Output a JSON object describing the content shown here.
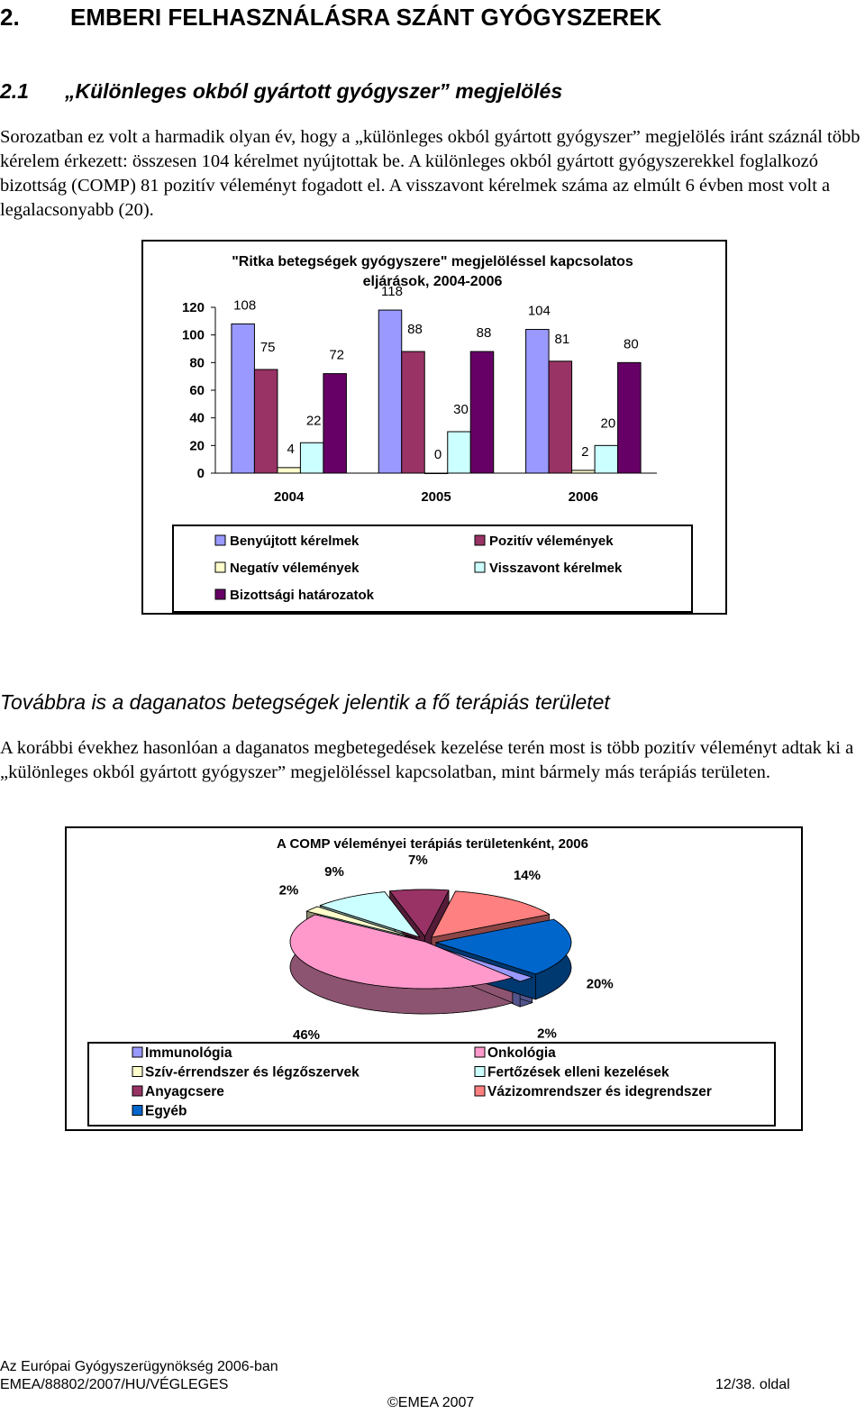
{
  "heading_1": {
    "number": "2.",
    "title": "EMBERI FELHASZNÁLÁSRA SZÁNT GYÓGYSZEREK"
  },
  "heading_2": {
    "number": "2.1",
    "title": "„Különleges okból gyártott gyógyszer” megjelölés"
  },
  "paragraph_1": "Sorozatban ez volt a harmadik olyan év, hogy a „különleges okból gyártott gyógyszer” megjelölés iránt száznál több kérelem érkezett: összesen 104 kérelmet nyújtottak be. A különleges okból gyártott gyógyszerekkel foglalkozó bizottság (COMP) 81 pozitív véleményt fogadott el. A visszavont kérelmek száma az elmúlt 6 évben most volt a legalacsonyabb (20).",
  "heading_3": "Továbbra is a daganatos betegségek jelentik a fő terápiás területet",
  "paragraph_2": "A korábbi évekhez hasonlóan a daganatos megbetegedések kezelése terén most is több pozitív véleményt adtak ki a „különleges okból gyártott gyógyszer” megjelöléssel kapcsolatban, mint bármely más terápiás területen.",
  "chart_data": [
    {
      "type": "bar",
      "title": [
        "\"Ritka betegségek gyógyszere\" megjelöléssel kapcsolatos",
        "eljárások, 2004-2006"
      ],
      "categories": [
        "2004",
        "2005",
        "2006"
      ],
      "series": [
        {
          "name": "Benyújtott kérelmek",
          "color": "#9999ff",
          "values": [
            108,
            118,
            104
          ]
        },
        {
          "name": "Pozitív vélemények",
          "color": "#993366",
          "values": [
            75,
            88,
            81
          ]
        },
        {
          "name": "Negatív vélemények",
          "color": "#ffffcc",
          "values": [
            4,
            0,
            2
          ]
        },
        {
          "name": "Visszavont kérelmek",
          "color": "#ccffff",
          "values": [
            22,
            30,
            20
          ]
        },
        {
          "name": "Bizottsági határozatok",
          "color": "#660066",
          "values": [
            72,
            88,
            80
          ]
        }
      ],
      "ylim": [
        0,
        120
      ],
      "yticks": [
        0,
        20,
        40,
        60,
        80,
        100,
        120
      ],
      "grid": false,
      "legend": "bottom"
    },
    {
      "type": "pie",
      "title": "A COMP véleményei terápiás területenként, 2006",
      "categories": [
        "Immunológia",
        "Onkológia",
        "Szív-érrendszer és légzőszervek",
        "Fertőzések elleni kezelések",
        "Anyagcsere",
        "Vázizomrendszer és idegrendszer",
        "Egyéb"
      ],
      "values": [
        2,
        46,
        2,
        9,
        7,
        14,
        20
      ],
      "value_labels": [
        "2%",
        "46%",
        "2%",
        "9%",
        "7%",
        "14%",
        "20%"
      ],
      "colors": [
        "#9999ff",
        "#ff99cc",
        "#ffffcc",
        "#ccffff",
        "#993366",
        "#ff8080",
        "#0066cc"
      ],
      "legend": "bottom"
    }
  ],
  "footer": {
    "line_1": "Az Európai Gyógyszerügynökség 2006-ban",
    "line_2": "EMEA/88802/2007/HU/VÉGLEGES",
    "page": "12/38. oldal",
    "copyright": "©EMEA 2007"
  }
}
